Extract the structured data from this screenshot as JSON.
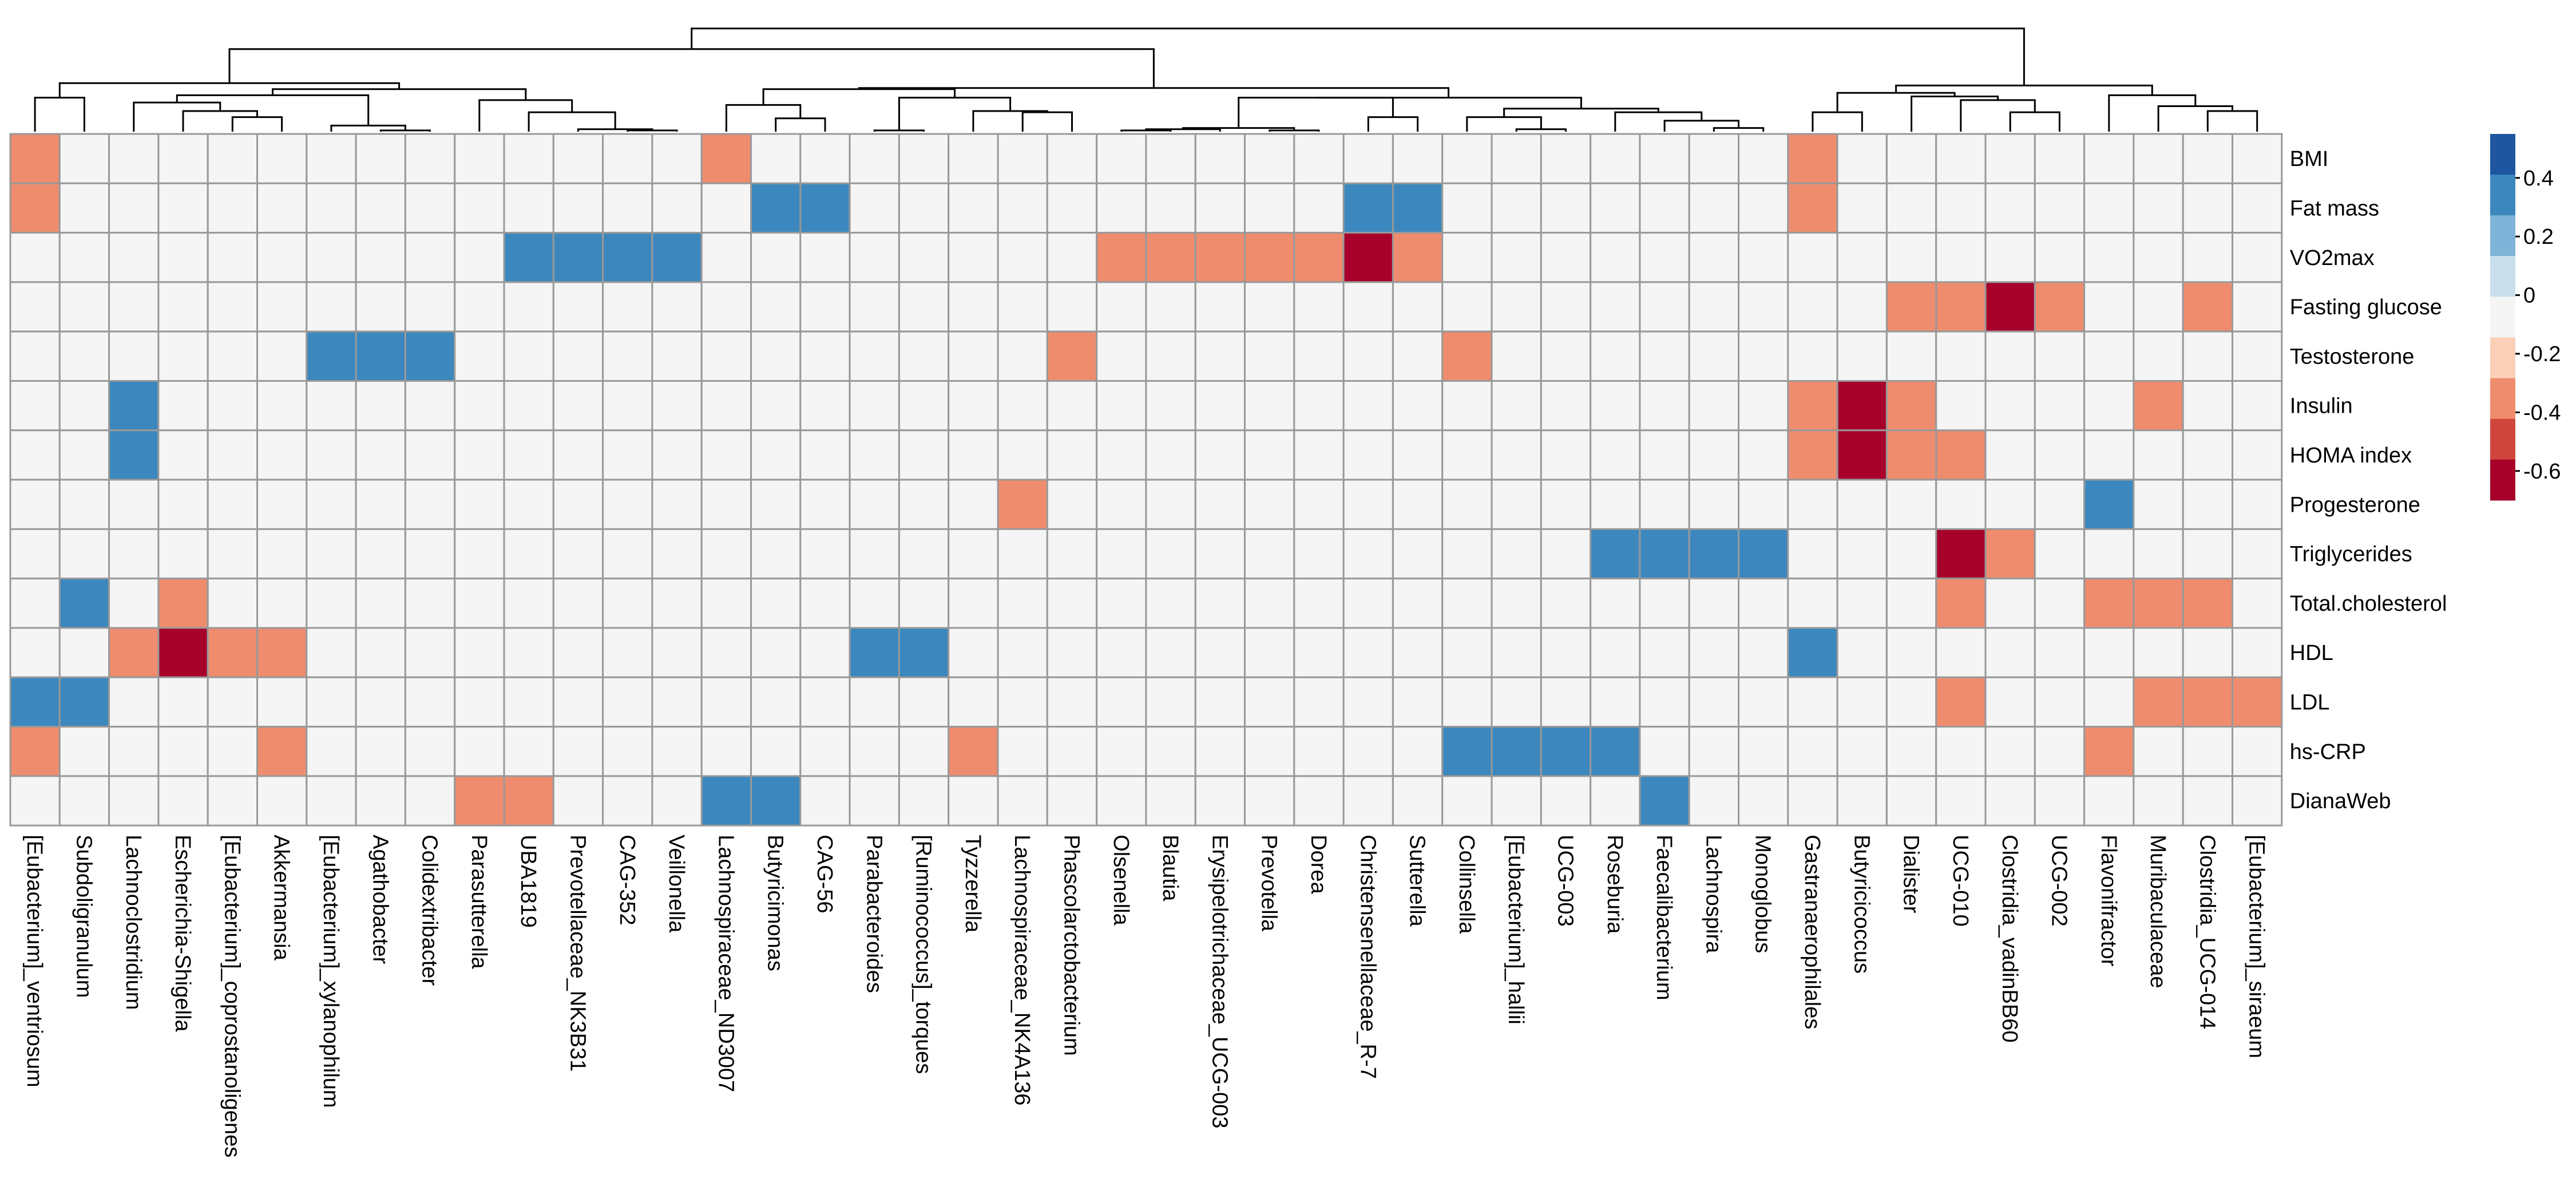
{
  "chart_data": {
    "type": "heatmap",
    "title": "",
    "columns": [
      "[Eubacterium]_ventriosum",
      "Subdoligranulum",
      "Lachnoclostridium",
      "Escherichia-Shigella",
      "[Eubacterium]_coprostanoligenes",
      "Akkermansia",
      "[Eubacterium]_xylanophilum",
      "Agathobacter",
      "Colidextribacter",
      "Parasutterella",
      "UBA1819",
      "Prevotellaceae_NK3B31",
      "CAG-352",
      "Veillonella",
      "Lachnospiraceae_ND3007",
      "Butyricimonas",
      "CAG-56",
      "Parabacteroides",
      "[Ruminococcus]_torques",
      "Tyzzerella",
      "Lachnospiraceae_NK4A136",
      "Phascolarctobacterium",
      "Olsenella",
      "Blautia",
      "Erysipelotrichaceae_UCG-003",
      "Prevotella",
      "Dorea",
      "Christensenellaceae_R-7",
      "Sutterella",
      "Collinsella",
      "[Eubacterium]_hallii",
      "UCG-003",
      "Roseburia",
      "Faecalibacterium",
      "Lachnospira",
      "Monoglobus",
      "Gastranaerophilales",
      "Butyricicoccus",
      "Dialister",
      "UCG-010",
      "Clostridia_vadinBB60",
      "UCG-002",
      "Flavonifractor",
      "Muribaculaceae",
      "Clostridia_UCG-014",
      "[Eubacterium]_siraeum"
    ],
    "rows": [
      "BMI",
      "Fat mass",
      "VO2max",
      "Fasting glucose",
      "Testosterone",
      "Insulin",
      "HOMA index",
      "Progesterone",
      "Triglycerides",
      "Total.cholesterol",
      "HDL",
      "LDL",
      "hs-CRP",
      "DianaWeb"
    ],
    "values": [
      [
        -0.5,
        0,
        0,
        0,
        0,
        0,
        0,
        0,
        0,
        0,
        0,
        0,
        0,
        0,
        -0.4,
        0,
        0,
        0,
        0,
        0,
        0,
        0,
        0,
        0,
        0,
        0,
        0,
        0,
        0,
        0,
        0,
        0,
        0,
        0,
        0,
        0,
        -0.5,
        0,
        0,
        0,
        0,
        0,
        0,
        0,
        0,
        0
      ],
      [
        -0.4,
        0,
        0,
        0,
        0,
        0,
        0,
        0,
        0,
        0,
        0,
        0,
        0,
        0,
        0,
        0.4,
        0.5,
        0,
        0,
        0,
        0,
        0,
        0,
        0,
        0,
        0,
        0,
        0.4,
        0.4,
        0,
        0,
        0,
        0,
        0,
        0,
        0,
        -0.4,
        0,
        0,
        0,
        0,
        0,
        0,
        0,
        0,
        0
      ],
      [
        0,
        0,
        0,
        0,
        0,
        0,
        0,
        0,
        0,
        0,
        0.4,
        0.5,
        0.4,
        0.4,
        0,
        0,
        0,
        0,
        0,
        0,
        0,
        0,
        -0.5,
        -0.5,
        -0.4,
        -0.5,
        -0.5,
        -0.7,
        -0.4,
        0,
        0,
        0,
        0,
        0,
        0,
        0,
        0,
        0,
        0,
        0,
        0,
        0,
        0,
        0,
        0,
        0
      ],
      [
        0,
        0,
        0,
        0,
        0,
        0,
        0,
        0,
        0,
        0,
        0,
        0,
        0,
        0,
        0,
        0,
        0,
        0,
        0,
        0,
        0,
        0,
        0,
        0,
        0,
        0,
        0,
        0,
        0,
        0,
        0,
        0,
        0,
        0,
        0,
        0,
        0,
        0,
        -0.4,
        -0.5,
        -0.7,
        -0.4,
        0,
        0,
        -0.4,
        0
      ],
      [
        0,
        0,
        0,
        0,
        0,
        0,
        0.5,
        0.5,
        0.4,
        0,
        0,
        0,
        0,
        0,
        0,
        0,
        0,
        0,
        0,
        0,
        0,
        -0.5,
        0,
        0,
        0,
        0,
        0,
        0,
        0,
        -0.4,
        0,
        0,
        0,
        0,
        0,
        0,
        0,
        0,
        0,
        0,
        0,
        0,
        0,
        0,
        0,
        0
      ],
      [
        0,
        0,
        0.4,
        0,
        0,
        0,
        0,
        0,
        0,
        0,
        0,
        0,
        0,
        0,
        0,
        0,
        0,
        0,
        0,
        0,
        0,
        0,
        0,
        0,
        0,
        0,
        0,
        0,
        0,
        0,
        0,
        0,
        0,
        0,
        0,
        0,
        -0.5,
        -0.7,
        -0.4,
        0,
        0,
        0,
        0,
        -0.4,
        0,
        0
      ],
      [
        0,
        0,
        0.4,
        0,
        0,
        0,
        0,
        0,
        0,
        0,
        0,
        0,
        0,
        0,
        0,
        0,
        0,
        0,
        0,
        0,
        0,
        0,
        0,
        0,
        0,
        0,
        0,
        0,
        0,
        0,
        0,
        0,
        0,
        0,
        0,
        0,
        -0.5,
        -0.7,
        -0.5,
        -0.4,
        0,
        0,
        0,
        0,
        0,
        0
      ],
      [
        0,
        0,
        0,
        0,
        0,
        0,
        0,
        0,
        0,
        0,
        0,
        0,
        0,
        0,
        0,
        0,
        0,
        0,
        0,
        0,
        -0.4,
        0,
        0,
        0,
        0,
        0,
        0,
        0,
        0,
        0,
        0,
        0,
        0,
        0,
        0,
        0,
        0,
        0,
        0,
        0,
        0,
        0,
        0.5,
        0,
        0,
        0
      ],
      [
        0,
        0,
        0,
        0,
        0,
        0,
        0,
        0,
        0,
        0,
        0,
        0,
        0,
        0,
        0,
        0,
        0,
        0,
        0,
        0,
        0,
        0,
        0,
        0,
        0,
        0,
        0,
        0,
        0,
        0,
        0,
        0,
        0.5,
        0.4,
        0.4,
        0.5,
        0,
        0,
        0,
        -0.7,
        -0.5,
        0,
        0,
        0,
        0,
        0
      ],
      [
        0,
        0.5,
        0,
        -0.4,
        0,
        0,
        0,
        0,
        0,
        0,
        0,
        0,
        0,
        0,
        0,
        0,
        0,
        0,
        0,
        0,
        0,
        0,
        0,
        0,
        0,
        0,
        0,
        0,
        0,
        0,
        0,
        0,
        0,
        0,
        0,
        0,
        0,
        0,
        0,
        -0.5,
        0,
        0,
        -0.5,
        -0.5,
        -0.4,
        0
      ],
      [
        0,
        0,
        -0.4,
        -0.7,
        -0.5,
        -0.5,
        0,
        0,
        0,
        0,
        0,
        0,
        0,
        0,
        0,
        0,
        0,
        0.5,
        0.5,
        0,
        0,
        0,
        0,
        0,
        0,
        0,
        0,
        0,
        0,
        0,
        0,
        0,
        0,
        0,
        0,
        0,
        0.4,
        0,
        0,
        0,
        0,
        0,
        0,
        0,
        0,
        0
      ],
      [
        0.4,
        0.5,
        0,
        0,
        0,
        0,
        0,
        0,
        0,
        0,
        0,
        0,
        0,
        0,
        0,
        0,
        0,
        0,
        0,
        0,
        0,
        0,
        0,
        0,
        0,
        0,
        0,
        0,
        0,
        0,
        0,
        0,
        0,
        0,
        0,
        0,
        0,
        0,
        0,
        -0.4,
        0,
        0,
        0,
        -0.5,
        -0.5,
        -0.5
      ],
      [
        -0.4,
        0,
        0,
        0,
        0,
        -0.4,
        0,
        0,
        0,
        0,
        0,
        0,
        0,
        0,
        0,
        0,
        0,
        0,
        0,
        -0.5,
        0,
        0,
        0,
        0,
        0,
        0,
        0,
        0,
        0,
        0.5,
        0.4,
        0.5,
        0.4,
        0,
        0,
        0,
        0,
        0,
        0,
        0,
        0,
        0,
        -0.5,
        0,
        0,
        0
      ],
      [
        0,
        0,
        0,
        0,
        0,
        0,
        0,
        0,
        0,
        -0.5,
        -0.4,
        0,
        0,
        0,
        0.5,
        0.4,
        0,
        0,
        0,
        0,
        0,
        0,
        0,
        0,
        0,
        0,
        0,
        0,
        0,
        0,
        0,
        0,
        0,
        0.4,
        0,
        0,
        0,
        0,
        0,
        0,
        0,
        0,
        0,
        0,
        0,
        0
      ]
    ],
    "color_scale": {
      "breaks": [
        -0.7,
        -0.6,
        -0.5,
        -0.3,
        -0.1,
        0.1,
        0.3,
        0.5,
        0.6
      ],
      "colors": [
        "#a7002a",
        "#d0463c",
        "#ef8c6e",
        "#fbd0b6",
        "#f5f5f5",
        "#c9e0ec",
        "#7fb4d8",
        "#3c88be",
        "#1e56a0"
      ]
    },
    "legend": {
      "position": "right",
      "tick_values": [
        0.4,
        0.2,
        0,
        -0.2,
        -0.4,
        -0.6
      ],
      "tick_labels": [
        "0.4",
        "0.2",
        "0",
        "-0.2",
        "-0.4",
        "-0.6"
      ],
      "range": [
        -0.7,
        0.55
      ]
    },
    "column_dendrogram": true
  }
}
